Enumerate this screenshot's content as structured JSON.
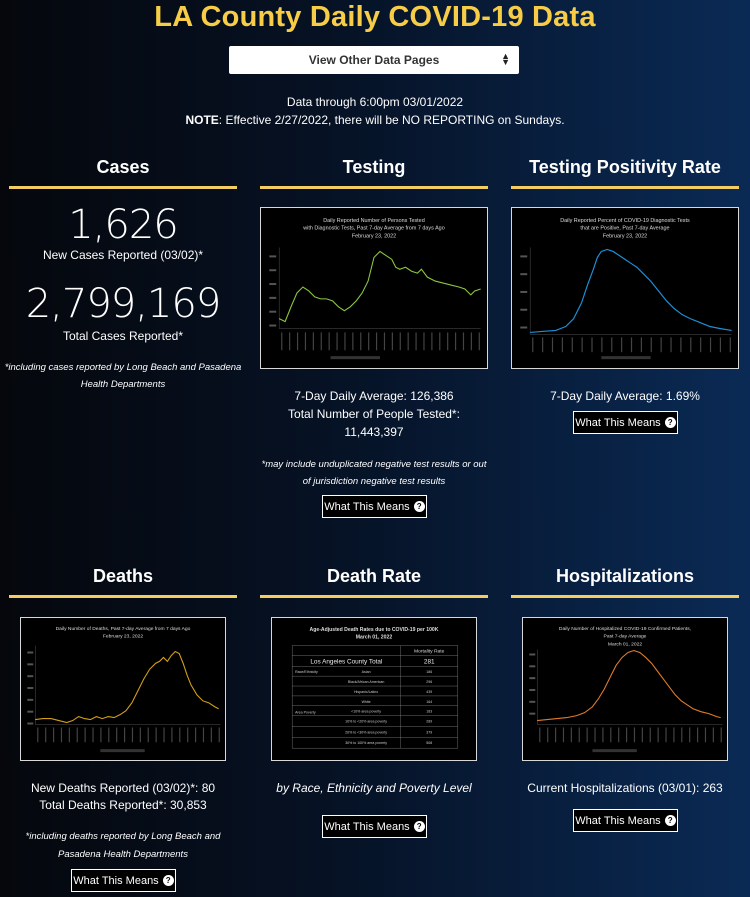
{
  "header": {
    "title": "LA County Daily COVID-19 Data"
  },
  "nav": {
    "select_label": "View Other Data Pages"
  },
  "status": {
    "data_through": "Data through 6:00pm 03/01/2022",
    "note_label": "NOTE",
    "note_text": ": Effective 2/27/2022, there will be NO REPORTING on Sundays."
  },
  "cases": {
    "title": "Cases",
    "new_cases": "1,626",
    "new_cases_label": "New Cases Reported (03/02)*",
    "total_cases": "2,799,169",
    "total_cases_label": "Total Cases Reported*",
    "footnote_1": "*including cases reported by Long Beach and Pasadena",
    "footnote_2": "Health Departments"
  },
  "testing": {
    "title": "Testing",
    "chart_title_1": "Daily Reported Number of Persons Tested",
    "chart_title_2": "with Diagnostic Tests, Past 7-day Average from 7 days Ago",
    "chart_title_3": "February 23, 2022",
    "avg": "7-Day Daily Average: 126,386",
    "total_label": "Total Number of People Tested*:",
    "total": "11,443,397",
    "footnote_1": "*may include unduplicated negative test results or out",
    "footnote_2": "of jurisdiction negative test results",
    "button": "What This Means",
    "line_color": "#8cc63f"
  },
  "positivity": {
    "title": "Testing Positivity Rate",
    "chart_title_1": "Daily Reported Percent of COVID-19 Diagnostic Tests",
    "chart_title_2": "that are Positive, Past 7-day Average",
    "chart_title_3": "February 23, 2022",
    "avg": "7-Day Daily Average: 1.69%",
    "button": "What This Means",
    "line_color": "#1e8fd6"
  },
  "deaths": {
    "title": "Deaths",
    "chart_title_1": "Daily Number of Deaths, Past 7-day Average from 7 days Ago",
    "chart_title_2": "February 23, 2022",
    "new_deaths": "New Deaths Reported (03/02)*: 80",
    "total_deaths": "Total Deaths Reported*: 30,853",
    "footnote_1": "*including deaths reported by Long Beach and",
    "footnote_2": "Pasadena Health Departments",
    "button": "What This Means",
    "line_color": "#d4a017"
  },
  "death_rate": {
    "title": "Death Rate",
    "chart_title_1": "Age-Adjusted Death Rates due to COVID-19 per 100K",
    "chart_title_2": "March 01, 2022",
    "table_header": "Mortality Rate",
    "county_label": "Los Angeles County Total",
    "county_value": "281",
    "group_race": "Race/Ethnicity",
    "group_poverty": "Area Poverty",
    "rows": [
      {
        "label": "Asian",
        "value": "186"
      },
      {
        "label": "Black/African American",
        "value": "296"
      },
      {
        "label": "Hispanic/Latino",
        "value": "439"
      },
      {
        "label": "White",
        "value": "164"
      },
      {
        "label": "<10% area poverty",
        "value": "183"
      },
      {
        "label": "10% to <20% area poverty",
        "value": "289"
      },
      {
        "label": "20% to <30% area poverty",
        "value": "379"
      },
      {
        "label": "30% to 100% area poverty",
        "value": "508"
      }
    ],
    "caption": "by Race, Ethnicity and Poverty Level",
    "button": "What This Means"
  },
  "hospitalizations": {
    "title": "Hospitalizations",
    "chart_title_1": "Daily Number of Hospitalized COVID-19 Confirmed Patients,",
    "chart_title_2": "Past 7-day Average",
    "chart_title_3": "March 01, 2022",
    "current": "Current Hospitalizations (03/01): 263",
    "button": "What This Means",
    "line_color": "#e07b2a"
  },
  "colors": {
    "accent": "#f7cd48",
    "rule": "#f3cd62"
  },
  "icons": {
    "help": "question-circle-icon",
    "select": "select-arrows-icon"
  }
}
